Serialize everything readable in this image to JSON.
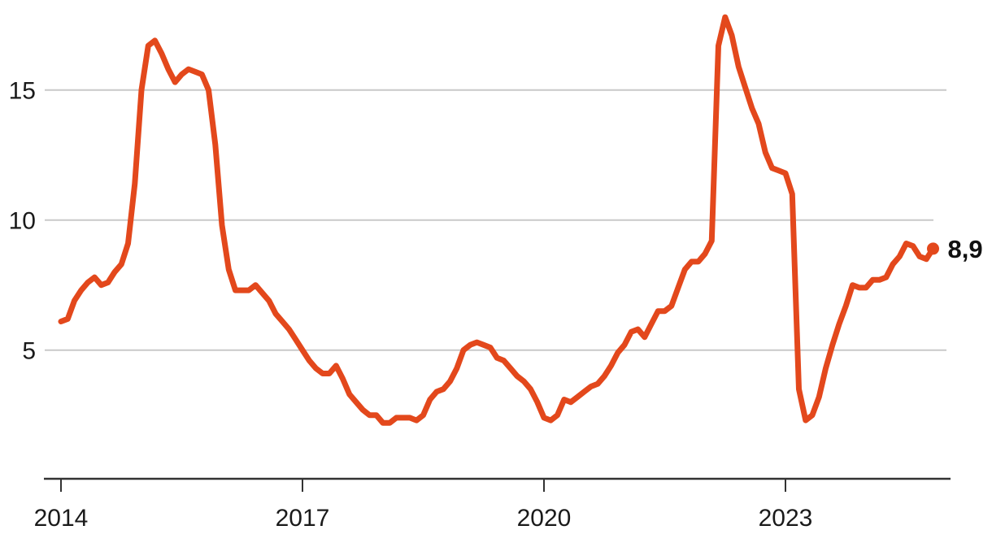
{
  "chart_data": {
    "type": "line",
    "title": "",
    "frequency": "monthly",
    "x_range": {
      "start": "2014-01",
      "end": "2024-11"
    },
    "x_ticks": [
      "2014",
      "2017",
      "2020",
      "2023"
    ],
    "y_ticks": [
      "5",
      "10",
      "15"
    ],
    "ylim": [
      0,
      18
    ],
    "grid": "horizontal-only",
    "legend": "none",
    "line_color": "#e3481c",
    "grid_color": "#c9c9c9",
    "axis_color": "#333333",
    "label_color": "#1a1a1a",
    "end_label": "8,9",
    "end_value": 8.9,
    "values": [
      6.1,
      6.2,
      6.9,
      7.3,
      7.6,
      7.8,
      7.5,
      7.6,
      8.0,
      8.3,
      9.1,
      11.4,
      15.0,
      16.7,
      16.9,
      16.4,
      15.8,
      15.3,
      15.6,
      15.8,
      15.7,
      15.6,
      15.0,
      12.9,
      9.8,
      8.1,
      7.3,
      7.3,
      7.3,
      7.5,
      7.2,
      6.9,
      6.4,
      6.1,
      5.8,
      5.4,
      5.0,
      4.6,
      4.3,
      4.1,
      4.1,
      4.4,
      3.9,
      3.3,
      3.0,
      2.7,
      2.5,
      2.5,
      2.2,
      2.2,
      2.4,
      2.4,
      2.4,
      2.3,
      2.5,
      3.1,
      3.4,
      3.5,
      3.8,
      4.3,
      5.0,
      5.2,
      5.3,
      5.2,
      5.1,
      4.7,
      4.6,
      4.3,
      4.0,
      3.8,
      3.5,
      3.0,
      2.4,
      2.3,
      2.5,
      3.1,
      3.0,
      3.2,
      3.4,
      3.6,
      3.7,
      4.0,
      4.4,
      4.9,
      5.2,
      5.7,
      5.8,
      5.5,
      6.0,
      6.5,
      6.5,
      6.7,
      7.4,
      8.1,
      8.4,
      8.4,
      8.7,
      9.2,
      16.7,
      17.8,
      17.1,
      15.9,
      15.1,
      14.3,
      13.7,
      12.6,
      12.0,
      11.9,
      11.8,
      11.0,
      3.5,
      2.3,
      2.5,
      3.2,
      4.3,
      5.2,
      6.0,
      6.7,
      7.5,
      7.4,
      7.4,
      7.7,
      7.7,
      7.8,
      8.3,
      8.6,
      9.1,
      9.0,
      8.6,
      8.5,
      8.9
    ]
  }
}
